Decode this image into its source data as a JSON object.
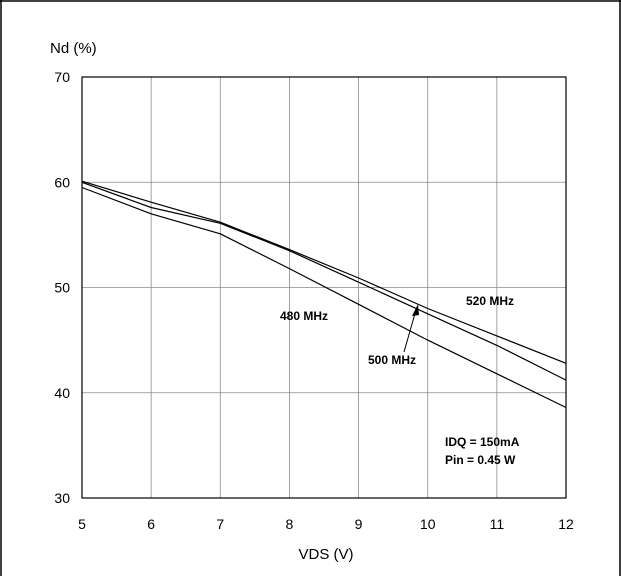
{
  "chart_data": {
    "type": "line",
    "ylabel": "Nd (%)",
    "xlabel": "VDS (V)",
    "xlim": [
      5,
      12
    ],
    "ylim": [
      30,
      70
    ],
    "x_ticks": [
      "5",
      "6",
      "7",
      "8",
      "9",
      "10",
      "11",
      "12"
    ],
    "y_ticks": [
      "30",
      "40",
      "50",
      "60",
      "70"
    ],
    "grid": true,
    "series": [
      {
        "name": "480 MHz",
        "x": [
          5,
          6,
          7,
          8,
          9,
          10,
          11,
          12
        ],
        "y": [
          59.5,
          57.0,
          55.1,
          51.8,
          48.4,
          45.0,
          41.8,
          38.6
        ]
      },
      {
        "name": "500 MHz",
        "x": [
          5,
          6,
          7,
          8,
          9,
          10,
          11,
          12
        ],
        "y": [
          60.0,
          57.6,
          56.1,
          53.5,
          50.5,
          47.5,
          44.5,
          41.2
        ]
      },
      {
        "name": "520 MHz",
        "x": [
          5,
          6,
          7,
          8,
          9,
          10,
          11,
          12
        ],
        "y": [
          60.1,
          58.1,
          56.2,
          53.6,
          50.9,
          48.0,
          45.4,
          42.8
        ]
      }
    ],
    "annotations": [
      "IDQ = 150mA",
      "Pin = 0.45 W"
    ]
  }
}
